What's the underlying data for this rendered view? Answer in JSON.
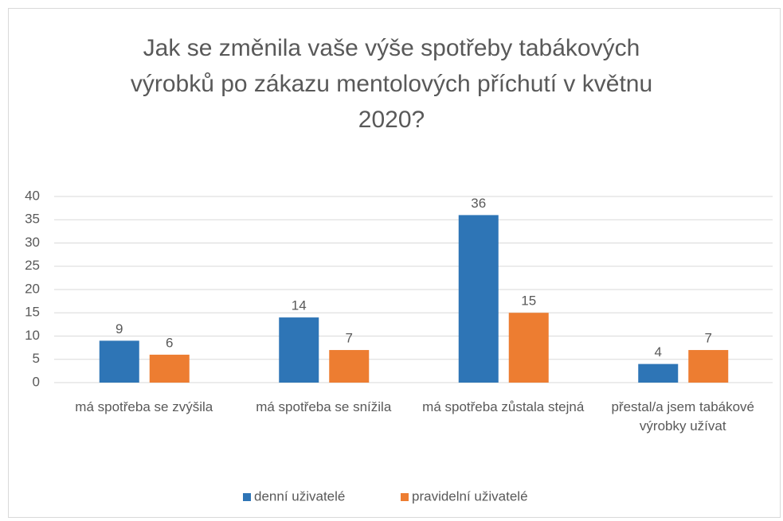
{
  "chart_data": {
    "type": "bar",
    "title": "Jak se změnila vaše výše spotřeby tabákových výrobků po zákazu mentolových příchutí v květnu 2020?",
    "categories": [
      "má spotřeba se zvýšila",
      "má spotřeba se snížila",
      "má spotřeba zůstala stejná",
      "přestal/a jsem tabákové výrobky užívat"
    ],
    "series": [
      {
        "name": "denní uživatelé",
        "color": "#2e75b6",
        "values": [
          9,
          14,
          36,
          4
        ]
      },
      {
        "name": "pravidelní uživatelé",
        "color": "#ed7d31",
        "values": [
          6,
          7,
          15,
          7
        ]
      }
    ],
    "ylim": [
      0,
      40
    ],
    "yticks": [
      0,
      5,
      10,
      15,
      20,
      25,
      30,
      35,
      40
    ],
    "grid": true,
    "legend": "bottom"
  }
}
